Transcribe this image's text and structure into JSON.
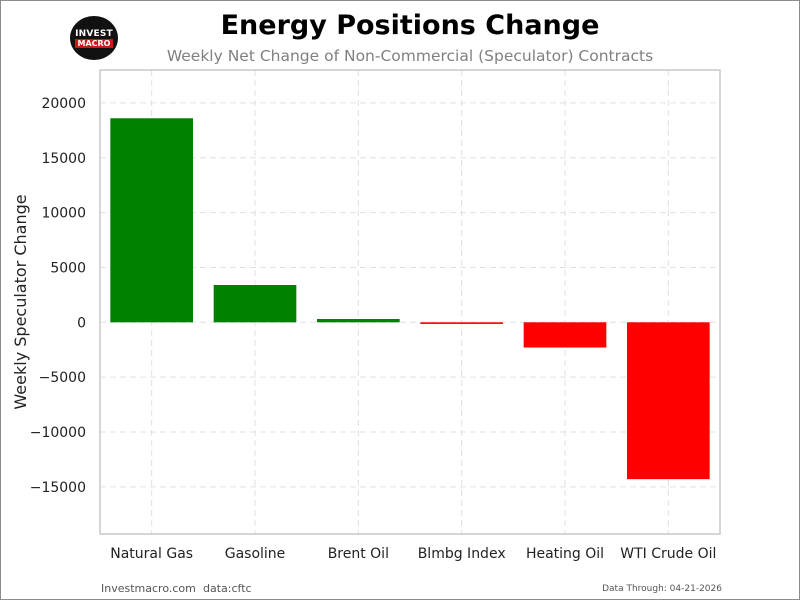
{
  "header": {
    "title": "Energy Positions Change",
    "subtitle": "Weekly Net Change of Non-Commercial (Speculator) Contracts",
    "logo_top": "INVEST",
    "logo_bottom": "MACRO"
  },
  "footer": {
    "site": "Investmacro.com",
    "source": "data:cftc",
    "data_through": "Data Through: 04-21-2026"
  },
  "colors": {
    "positive": "#008000",
    "negative": "#ff0000",
    "grid": "#e0e0e0",
    "axis_box": "#c8c8c8"
  },
  "chart_data": {
    "type": "bar",
    "title": "Energy Positions Change",
    "subtitle": "Weekly Net Change of Non-Commercial (Speculator) Contracts",
    "xlabel": "",
    "ylabel": "Weekly Speculator Change",
    "categories": [
      "Natural Gas",
      "Gasoline",
      "Brent Oil",
      "Blmbg Index",
      "Heating Oil",
      "WTI Crude Oil"
    ],
    "values": [
      18600,
      3400,
      300,
      -150,
      -2300,
      -14300
    ],
    "ylim": [
      -19300,
      23000
    ],
    "yticks": [
      20000,
      15000,
      10000,
      5000,
      0,
      -5000,
      -10000,
      -15000
    ],
    "ytick_labels": [
      "20000",
      "15000",
      "10000",
      "5000",
      "0",
      "−5000",
      "−10000",
      "−15000"
    ],
    "grid": true,
    "grid_style": "dashed"
  }
}
